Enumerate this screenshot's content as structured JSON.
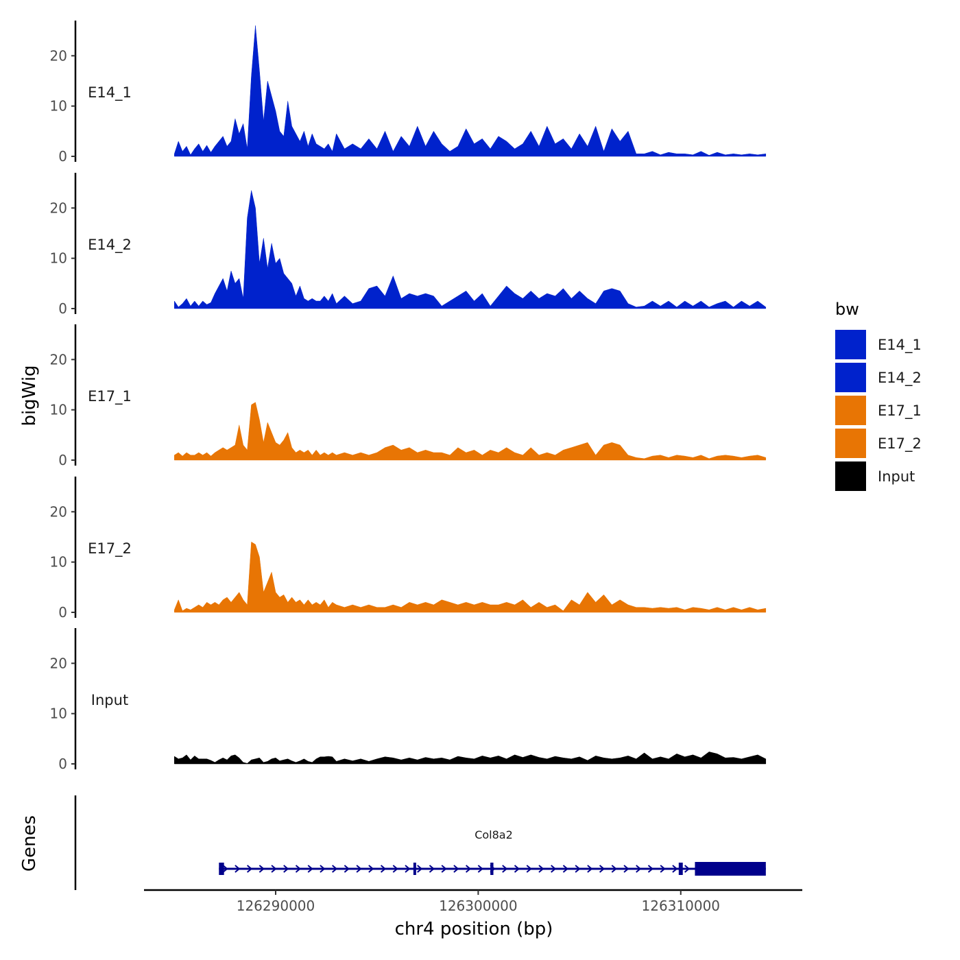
{
  "chart_data": {
    "type": "area",
    "title": "",
    "xlabel": "chr4 position (bp)",
    "ylabel": "bigWig",
    "genes_label": "Genes",
    "xlim": [
      126283500,
      126316000
    ],
    "ylim": [
      0,
      27
    ],
    "y_ticks": [
      0,
      10,
      20
    ],
    "x_ticks": [
      126290000,
      126300000,
      126310000
    ],
    "x_tick_labels": [
      "126290000",
      "126300000",
      "126310000"
    ],
    "legend": {
      "title": "bw",
      "position": "right",
      "entries": [
        {
          "label": "E14_1",
          "color": "#0022cc"
        },
        {
          "label": "E14_2",
          "color": "#0022cc"
        },
        {
          "label": "E17_1",
          "color": "#e87504"
        },
        {
          "label": "E17_2",
          "color": "#e87504"
        },
        {
          "label": "Input",
          "color": "#000000"
        }
      ]
    },
    "series": [
      {
        "name": "E14_1",
        "color": "#0022cc",
        "x": [
          126285000,
          126285200,
          126285400,
          126285600,
          126285800,
          126286000,
          126286200,
          126286400,
          126286600,
          126286800,
          126287000,
          126287200,
          126287400,
          126287600,
          126287800,
          126288000,
          126288200,
          126288400,
          126288600,
          126288800,
          126289000,
          126289200,
          126289400,
          126289600,
          126289800,
          126290000,
          126290200,
          126290400,
          126290600,
          126290800,
          126291000,
          126291200,
          126291400,
          126291600,
          126291800,
          126292000,
          126292200,
          126292400,
          126292600,
          126292800,
          126293000,
          126293400,
          126293800,
          126294200,
          126294600,
          126295000,
          126295400,
          126295800,
          126296200,
          126296600,
          126297000,
          126297400,
          126297800,
          126298200,
          126298600,
          126299000,
          126299400,
          126299800,
          126300200,
          126300600,
          126301000,
          126301400,
          126301800,
          126302200,
          126302600,
          126303000,
          126303400,
          126303800,
          126304200,
          126304600,
          126305000,
          126305400,
          126305800,
          126306200,
          126306600,
          126307000,
          126307400,
          126307800,
          126308200,
          126308600,
          126309000,
          126309400,
          126309800,
          126310200,
          126310600,
          126311000,
          126311400,
          126311800,
          126312200,
          126312600,
          126313000,
          126313400,
          126313800,
          126314200
        ],
        "values": [
          0.5,
          3.0,
          1.0,
          2.0,
          0.3,
          1.5,
          2.5,
          1.0,
          2.2,
          0.8,
          2.0,
          3.0,
          4.0,
          2.0,
          3.0,
          7.5,
          4.5,
          6.5,
          1.5,
          16,
          26,
          17,
          7,
          15,
          12,
          9,
          5,
          4,
          11,
          6,
          4.5,
          3,
          5,
          2,
          4.5,
          2.5,
          2,
          1.5,
          2.5,
          1,
          4.5,
          1.5,
          2.5,
          1.5,
          3.5,
          1.5,
          5,
          1,
          4,
          2,
          6,
          2,
          5,
          2.5,
          1,
          2,
          5.5,
          2.5,
          3.5,
          1.5,
          4,
          3,
          1.5,
          2.5,
          5,
          2,
          6,
          2.5,
          3.5,
          1.5,
          4.5,
          2,
          6,
          1,
          5.5,
          3,
          5,
          0.5,
          0.5,
          1,
          0.3,
          0.8,
          0.5,
          0.5,
          0.3,
          1,
          0.2,
          0.8,
          0.3,
          0.5,
          0.3,
          0.5,
          0.3,
          0.5
        ]
      },
      {
        "name": "E14_2",
        "color": "#0022cc",
        "x": [
          126285000,
          126285200,
          126285400,
          126285600,
          126285800,
          126286000,
          126286200,
          126286400,
          126286600,
          126286800,
          126287000,
          126287200,
          126287400,
          126287600,
          126287800,
          126288000,
          126288200,
          126288400,
          126288600,
          126288800,
          126289000,
          126289200,
          126289400,
          126289600,
          126289800,
          126290000,
          126290200,
          126290400,
          126290600,
          126290800,
          126291000,
          126291200,
          126291400,
          126291600,
          126291800,
          126292000,
          126292200,
          126292400,
          126292600,
          126292800,
          126293000,
          126293400,
          126293800,
          126294200,
          126294600,
          126295000,
          126295400,
          126295800,
          126296200,
          126296600,
          126297000,
          126297400,
          126297800,
          126298200,
          126298600,
          126299000,
          126299400,
          126299800,
          126300200,
          126300600,
          126301000,
          126301400,
          126301800,
          126302200,
          126302600,
          126303000,
          126303400,
          126303800,
          126304200,
          126304600,
          126305000,
          126305400,
          126305800,
          126306200,
          126306600,
          126307000,
          126307400,
          126307800,
          126308200,
          126308600,
          126309000,
          126309400,
          126309800,
          126310200,
          126310600,
          126311000,
          126311400,
          126311800,
          126312200,
          126312600,
          126313000,
          126313400,
          126313800,
          126314200
        ],
        "values": [
          1.5,
          0.3,
          1.0,
          2.0,
          0.5,
          1.5,
          0.5,
          1.5,
          0.8,
          1.2,
          3.0,
          4.5,
          6.0,
          3.5,
          7.5,
          5.0,
          6.0,
          2.0,
          18,
          23.5,
          20,
          9,
          14,
          8,
          13,
          9,
          10,
          7,
          6,
          5,
          2.5,
          4.5,
          2,
          1.5,
          2,
          1.5,
          1.5,
          2.5,
          1.5,
          3,
          1,
          2.5,
          1,
          1.5,
          4,
          4.5,
          2.5,
          6.5,
          2,
          3,
          2.5,
          3,
          2.5,
          0.5,
          1.5,
          2.5,
          3.5,
          1.5,
          3,
          0.5,
          2.5,
          4.5,
          3,
          2,
          3.5,
          2,
          3,
          2.5,
          4,
          2,
          3.5,
          2,
          1,
          3.5,
          4,
          3.5,
          1,
          0.3,
          0.5,
          1.5,
          0.5,
          1.5,
          0.3,
          1.5,
          0.5,
          1.5,
          0.3,
          1.0,
          1.5,
          0.3,
          1.5,
          0.5,
          1.5,
          0.3
        ]
      },
      {
        "name": "E17_1",
        "color": "#e87504",
        "x": [
          126285000,
          126285200,
          126285400,
          126285600,
          126285800,
          126286000,
          126286200,
          126286400,
          126286600,
          126286800,
          126287000,
          126287200,
          126287400,
          126287600,
          126287800,
          126288000,
          126288200,
          126288400,
          126288600,
          126288800,
          126289000,
          126289200,
          126289400,
          126289600,
          126289800,
          126290000,
          126290200,
          126290400,
          126290600,
          126290800,
          126291000,
          126291200,
          126291400,
          126291600,
          126291800,
          126292000,
          126292200,
          126292400,
          126292600,
          126292800,
          126293000,
          126293400,
          126293800,
          126294200,
          126294600,
          126295000,
          126295400,
          126295800,
          126296200,
          126296600,
          126297000,
          126297400,
          126297800,
          126298200,
          126298600,
          126299000,
          126299400,
          126299800,
          126300200,
          126300600,
          126301000,
          126301400,
          126301800,
          126302200,
          126302600,
          126303000,
          126303400,
          126303800,
          126304200,
          126304600,
          126305000,
          126305400,
          126305800,
          126306200,
          126306600,
          126307000,
          126307400,
          126307800,
          126308200,
          126308600,
          126309000,
          126309400,
          126309800,
          126310200,
          126310600,
          126311000,
          126311400,
          126311800,
          126312200,
          126312600,
          126313000,
          126313400,
          126313800,
          126314200
        ],
        "values": [
          1.0,
          1.5,
          0.8,
          1.5,
          1.0,
          1.0,
          1.5,
          1.0,
          1.5,
          0.8,
          1.5,
          2.0,
          2.5,
          2.0,
          2.5,
          3.0,
          7.0,
          3.0,
          2.0,
          11,
          11.5,
          8,
          3.5,
          7.5,
          5.5,
          3.5,
          3.0,
          4.0,
          5.5,
          2.5,
          1.5,
          2.0,
          1.5,
          2.0,
          1.0,
          2.0,
          1.0,
          1.5,
          1.0,
          1.5,
          1.0,
          1.5,
          1.0,
          1.5,
          1.0,
          1.5,
          2.5,
          3,
          2,
          2.5,
          1.5,
          2,
          1.5,
          1.5,
          1.0,
          2.5,
          1.5,
          2.0,
          1.0,
          2.0,
          1.5,
          2.5,
          1.5,
          1.0,
          2.5,
          1.0,
          1.5,
          1.0,
          2.0,
          2.5,
          3.0,
          3.5,
          1.0,
          3.0,
          3.5,
          3.0,
          1.0,
          0.5,
          0.3,
          0.8,
          1.0,
          0.5,
          1.0,
          0.8,
          0.5,
          1.0,
          0.3,
          0.8,
          1.0,
          0.8,
          0.5,
          0.8,
          1.0,
          0.5
        ]
      },
      {
        "name": "E17_2",
        "color": "#e87504",
        "x": [
          126285000,
          126285200,
          126285400,
          126285600,
          126285800,
          126286000,
          126286200,
          126286400,
          126286600,
          126286800,
          126287000,
          126287200,
          126287400,
          126287600,
          126287800,
          126288000,
          126288200,
          126288400,
          126288600,
          126288800,
          126289000,
          126289200,
          126289400,
          126289600,
          126289800,
          126290000,
          126290200,
          126290400,
          126290600,
          126290800,
          126291000,
          126291200,
          126291400,
          126291600,
          126291800,
          126292000,
          126292200,
          126292400,
          126292600,
          126292800,
          126293000,
          126293400,
          126293800,
          126294200,
          126294600,
          126295000,
          126295400,
          126295800,
          126296200,
          126296600,
          126297000,
          126297400,
          126297800,
          126298200,
          126298600,
          126299000,
          126299400,
          126299800,
          126300200,
          126300600,
          126301000,
          126301400,
          126301800,
          126302200,
          126302600,
          126303000,
          126303400,
          126303800,
          126304200,
          126304600,
          126305000,
          126305400,
          126305800,
          126306200,
          126306600,
          126307000,
          126307400,
          126307800,
          126308200,
          126308600,
          126309000,
          126309400,
          126309800,
          126310200,
          126310600,
          126311000,
          126311400,
          126311800,
          126312200,
          126312600,
          126313000,
          126313400,
          126313800,
          126314200
        ],
        "values": [
          0.5,
          2.5,
          0.3,
          0.8,
          0.5,
          1.0,
          1.5,
          1.0,
          2.0,
          1.5,
          2.0,
          1.5,
          2.5,
          3.0,
          2.0,
          3.0,
          4.0,
          2.5,
          1.5,
          14,
          13.5,
          11,
          4,
          6,
          8,
          4,
          3.0,
          3.5,
          2.0,
          3.0,
          2.0,
          2.5,
          1.5,
          2.5,
          1.5,
          2.0,
          1.5,
          2.5,
          1.0,
          2.0,
          1.5,
          1.0,
          1.5,
          1.0,
          1.5,
          1.0,
          1.0,
          1.5,
          1.0,
          2.0,
          1.5,
          2.0,
          1.5,
          2.5,
          2.0,
          1.5,
          2.0,
          1.5,
          2.0,
          1.5,
          1.5,
          2.0,
          1.5,
          2.5,
          1.0,
          2.0,
          1.0,
          1.5,
          0.3,
          2.5,
          1.5,
          4,
          2.0,
          3.5,
          1.5,
          2.5,
          1.5,
          1.0,
          1.0,
          0.8,
          1.0,
          0.8,
          1.0,
          0.5,
          1.0,
          0.8,
          0.5,
          1.0,
          0.5,
          1.0,
          0.5,
          1.0,
          0.5,
          0.8
        ]
      },
      {
        "name": "Input",
        "color": "#000000",
        "x": [
          126285000,
          126285200,
          126285400,
          126285600,
          126285800,
          126286000,
          126286200,
          126286400,
          126286600,
          126286800,
          126287000,
          126287200,
          126287400,
          126287600,
          126287800,
          126288000,
          126288200,
          126288400,
          126288600,
          126288800,
          126289000,
          126289200,
          126289400,
          126289600,
          126289800,
          126290000,
          126290200,
          126290400,
          126290600,
          126290800,
          126291000,
          126291200,
          126291400,
          126291600,
          126291800,
          126292000,
          126292200,
          126292400,
          126292600,
          126292800,
          126293000,
          126293400,
          126293800,
          126294200,
          126294600,
          126295000,
          126295400,
          126295800,
          126296200,
          126296600,
          126297000,
          126297400,
          126297800,
          126298200,
          126298600,
          126299000,
          126299400,
          126299800,
          126300200,
          126300600,
          126301000,
          126301400,
          126301800,
          126302200,
          126302600,
          126303000,
          126303400,
          126303800,
          126304200,
          126304600,
          126305000,
          126305400,
          126305800,
          126306200,
          126306600,
          126307000,
          126307400,
          126307800,
          126308200,
          126308600,
          126309000,
          126309400,
          126309800,
          126310200,
          126310600,
          126311000,
          126311400,
          126311800,
          126312200,
          126312600,
          126313000,
          126313400,
          126313800,
          126314200
        ],
        "values": [
          1.5,
          1.0,
          1.2,
          1.8,
          0.8,
          1.6,
          1.0,
          1.0,
          1.0,
          0.7,
          0.3,
          0.8,
          1.2,
          0.8,
          1.6,
          1.8,
          1.2,
          0.3,
          0.1,
          0.8,
          1.0,
          1.2,
          0.3,
          0.5,
          1.0,
          1.2,
          0.6,
          0.8,
          1.0,
          0.6,
          0.3,
          0.6,
          1.0,
          0.5,
          0.3,
          1.0,
          1.4,
          1.4,
          1.5,
          1.4,
          0.5,
          1.0,
          0.6,
          1.0,
          0.5,
          1.0,
          1.4,
          1.2,
          0.8,
          1.2,
          0.8,
          1.3,
          1.0,
          1.2,
          0.8,
          1.5,
          1.2,
          1.0,
          1.6,
          1.2,
          1.6,
          1.0,
          1.8,
          1.3,
          1.8,
          1.3,
          1.0,
          1.5,
          1.2,
          1.0,
          1.4,
          0.7,
          1.6,
          1.2,
          1.0,
          1.2,
          1.6,
          1.0,
          2.2,
          1.0,
          1.4,
          1.0,
          2.0,
          1.4,
          1.8,
          1.2,
          2.4,
          2.0,
          1.2,
          1.3,
          1.0,
          1.4,
          1.8,
          1.0
        ]
      }
    ],
    "gene_track": {
      "gene": "Col8a2",
      "strand": "+",
      "start": 126287200,
      "end": 126314200,
      "exons": [
        {
          "start": 126287200,
          "end": 126287450,
          "type": "utr"
        },
        {
          "start": 126296800,
          "end": 126296850,
          "type": "utr"
        },
        {
          "start": 126300600,
          "end": 126300750,
          "type": "utr"
        },
        {
          "start": 126309900,
          "end": 126310100,
          "type": "utr"
        },
        {
          "start": 126310700,
          "end": 126314200,
          "type": "cds"
        }
      ],
      "color": "#00008b"
    }
  }
}
